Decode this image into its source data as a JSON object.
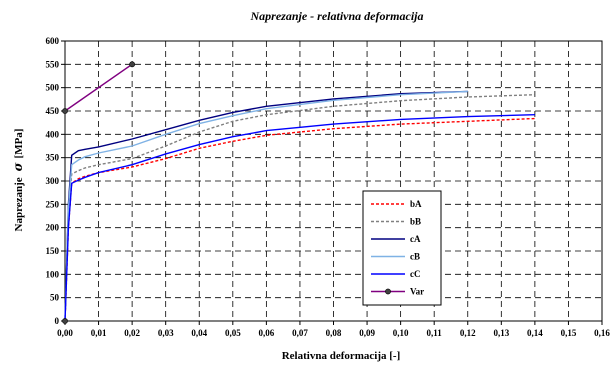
{
  "chart_data": {
    "type": "line",
    "title": "Naprezanje - relativna deformacija",
    "xlabel": "Relativna deformacija   [-]",
    "ylabel": "Naprezanje",
    "ylabel_symbol": "σ",
    "ylabel_unit": "[MPa]",
    "xlim": [
      0,
      0.16
    ],
    "ylim": [
      0,
      600
    ],
    "x_ticks": [
      "0,00",
      "0,01",
      "0,02",
      "0,03",
      "0,04",
      "0,05",
      "0,06",
      "0,07",
      "0,08",
      "0,09",
      "0,10",
      "0,11",
      "0,12",
      "0,13",
      "0,14",
      "0,15",
      "0,16"
    ],
    "y_ticks": [
      "0",
      "50",
      "100",
      "150",
      "200",
      "250",
      "300",
      "350",
      "400",
      "450",
      "500",
      "550",
      "600"
    ],
    "grid": true,
    "legend_position": "inside-right",
    "series": [
      {
        "name": "bA",
        "color": "#ff0000",
        "dash": "3,2",
        "marker": false,
        "x": [
          0,
          0.001,
          0.002,
          0.004,
          0.006,
          0.01,
          0.02,
          0.03,
          0.04,
          0.05,
          0.06,
          0.08,
          0.1,
          0.12,
          0.14
        ],
        "y": [
          0,
          200,
          295,
          305,
          310,
          318,
          330,
          348,
          370,
          385,
          398,
          412,
          422,
          428,
          434
        ]
      },
      {
        "name": "bB",
        "color": "#808080",
        "dash": "3,2",
        "marker": false,
        "x": [
          0,
          0.001,
          0.002,
          0.004,
          0.006,
          0.01,
          0.02,
          0.03,
          0.04,
          0.05,
          0.06,
          0.08,
          0.1,
          0.12,
          0.14
        ],
        "y": [
          0,
          230,
          315,
          322,
          328,
          335,
          348,
          375,
          405,
          428,
          442,
          460,
          472,
          480,
          485
        ]
      },
      {
        "name": "cA",
        "color": "#000080",
        "dash": "",
        "marker": false,
        "x": [
          0,
          0.001,
          0.002,
          0.004,
          0.006,
          0.01,
          0.02,
          0.03,
          0.04,
          0.05,
          0.06,
          0.08,
          0.1,
          0.12
        ],
        "y": [
          0,
          250,
          355,
          365,
          368,
          373,
          390,
          410,
          430,
          447,
          460,
          476,
          487,
          492
        ]
      },
      {
        "name": "cB",
        "color": "#7fb2e5",
        "dash": "",
        "marker": false,
        "x": [
          0,
          0.001,
          0.002,
          0.004,
          0.006,
          0.01,
          0.02,
          0.03,
          0.04,
          0.05,
          0.06,
          0.08,
          0.1,
          0.12
        ],
        "y": [
          0,
          240,
          335,
          345,
          352,
          360,
          375,
          400,
          423,
          440,
          455,
          473,
          485,
          492
        ]
      },
      {
        "name": "cC",
        "color": "#0000ff",
        "dash": "",
        "marker": false,
        "x": [
          0,
          0.001,
          0.002,
          0.004,
          0.006,
          0.01,
          0.02,
          0.03,
          0.04,
          0.05,
          0.06,
          0.08,
          0.1,
          0.12,
          0.14
        ],
        "y": [
          0,
          200,
          295,
          302,
          308,
          318,
          335,
          358,
          378,
          395,
          408,
          422,
          432,
          438,
          442
        ]
      },
      {
        "name": "Var",
        "color": "#800080",
        "dash": "",
        "marker": true,
        "x": [
          0,
          0.02
        ],
        "y": [
          450,
          550
        ]
      }
    ]
  }
}
